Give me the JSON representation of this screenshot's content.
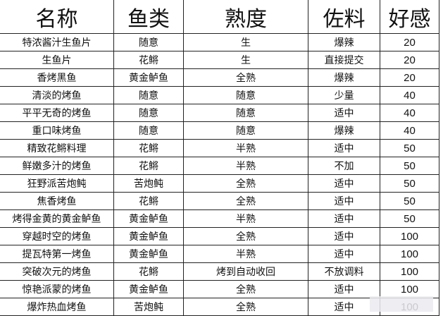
{
  "headers": [
    "名称",
    "鱼类",
    "熟度",
    "佐料",
    "好感"
  ],
  "rows": [
    [
      "特浓酱汁生鱼片",
      "随意",
      "生",
      "爆辣",
      "20"
    ],
    [
      "生鱼片",
      "花鳉",
      "生",
      "直接提交",
      "20"
    ],
    [
      "香烤黑鱼",
      "黄金鲈鱼",
      "全熟",
      "爆辣",
      "20"
    ],
    [
      "清淡的烤鱼",
      "随意",
      "随意",
      "少量",
      "40"
    ],
    [
      "平平无奇的烤鱼",
      "随意",
      "随意",
      "适中",
      "40"
    ],
    [
      "重口味烤鱼",
      "随意",
      "随意",
      "爆辣",
      "40"
    ],
    [
      "精致花鳉料理",
      "花鳉",
      "半熟",
      "适中",
      "50"
    ],
    [
      "鲜嫩多汁的烤鱼",
      "花鳉",
      "半熟",
      "不加",
      "50"
    ],
    [
      "狂野派苦炮鲀",
      "苦炮鲀",
      "全熟",
      "适中",
      "50"
    ],
    [
      "焦香烤鱼",
      "花鳉",
      "全熟",
      "适中",
      "50"
    ],
    [
      "烤得金黄的黄金鲈鱼",
      "黄金鲈鱼",
      "半熟",
      "适中",
      "50"
    ],
    [
      "穿越时空的烤鱼",
      "黄金鲈鱼",
      "全熟",
      "适中",
      "100"
    ],
    [
      "提瓦特第一烤鱼",
      "黄金鲈鱼",
      "半熟",
      "适中",
      "100"
    ],
    [
      "突破次元的烤鱼",
      "花鳉",
      "烤到自动收回",
      "不放调料",
      "100"
    ],
    [
      "惊艳派蒙的烤鱼",
      "黄金鲈鱼",
      "全熟",
      "适中",
      "100"
    ],
    [
      "爆炸热血烤鱼",
      "苦炮鲀",
      "全熟",
      "适中",
      "100"
    ]
  ]
}
